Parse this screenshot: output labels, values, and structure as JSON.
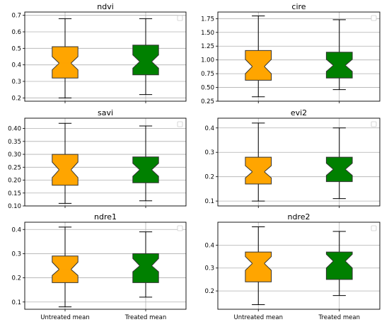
{
  "chart_data": [
    {
      "type": "box",
      "title": "ndvi",
      "categories": [
        "Untreated mean",
        "Treated mean"
      ],
      "yticks": [
        "0.2",
        "0.3",
        "0.4",
        "0.5",
        "0.6",
        "0.7"
      ],
      "ylim": [
        0.18,
        0.72
      ],
      "grid": true,
      "legend": "top-right",
      "colors": [
        "#FFA500",
        "#008000"
      ],
      "boxes": [
        {
          "whislo": 0.2,
          "q1": 0.32,
          "med": 0.41,
          "q3": 0.51,
          "whishi": 0.68,
          "notch_lo": 0.37,
          "notch_hi": 0.45
        },
        {
          "whislo": 0.22,
          "q1": 0.34,
          "med": 0.42,
          "q3": 0.52,
          "whishi": 0.68,
          "notch_lo": 0.38,
          "notch_hi": 0.46
        }
      ]
    },
    {
      "type": "box",
      "title": "cire",
      "categories": [
        "Untreated mean",
        "Treated mean"
      ],
      "yticks": [
        "0.25",
        "0.50",
        "0.75",
        "1.00",
        "1.25",
        "1.50",
        "1.75"
      ],
      "ylim": [
        0.25,
        1.87
      ],
      "grid": true,
      "legend": "top-right",
      "colors": [
        "#FFA500",
        "#008000"
      ],
      "boxes": [
        {
          "whislo": 0.33,
          "q1": 0.63,
          "med": 0.88,
          "q3": 1.17,
          "whishi": 1.8,
          "notch_lo": 0.75,
          "notch_hi": 1.01
        },
        {
          "whislo": 0.46,
          "q1": 0.67,
          "med": 0.9,
          "q3": 1.14,
          "whishi": 1.73,
          "notch_lo": 0.79,
          "notch_hi": 1.01
        }
      ]
    },
    {
      "type": "box",
      "title": "savi",
      "categories": [
        "Untreated mean",
        "Treated mean"
      ],
      "yticks": [
        "0.10",
        "0.15",
        "0.20",
        "0.25",
        "0.30",
        "0.35",
        "0.40"
      ],
      "ylim": [
        0.1,
        0.44
      ],
      "grid": true,
      "legend": "top-right",
      "colors": [
        "#FFA500",
        "#008000"
      ],
      "boxes": [
        {
          "whislo": 0.11,
          "q1": 0.18,
          "med": 0.24,
          "q3": 0.3,
          "whishi": 0.42,
          "notch_lo": 0.21,
          "notch_hi": 0.27
        },
        {
          "whislo": 0.12,
          "q1": 0.19,
          "med": 0.24,
          "q3": 0.29,
          "whishi": 0.41,
          "notch_lo": 0.215,
          "notch_hi": 0.265
        }
      ]
    },
    {
      "type": "box",
      "title": "evi2",
      "categories": [
        "Untreated mean",
        "Treated mean"
      ],
      "yticks": [
        "0.1",
        "0.2",
        "0.3",
        "0.4"
      ],
      "ylim": [
        0.08,
        0.44
      ],
      "grid": true,
      "legend": "top-right",
      "colors": [
        "#FFA500",
        "#008000"
      ],
      "boxes": [
        {
          "whislo": 0.1,
          "q1": 0.17,
          "med": 0.22,
          "q3": 0.28,
          "whishi": 0.42,
          "notch_lo": 0.195,
          "notch_hi": 0.245
        },
        {
          "whislo": 0.11,
          "q1": 0.18,
          "med": 0.23,
          "q3": 0.28,
          "whishi": 0.4,
          "notch_lo": 0.205,
          "notch_hi": 0.255
        }
      ]
    },
    {
      "type": "box",
      "title": "ndre1",
      "categories": [
        "Untreated mean",
        "Treated mean"
      ],
      "yticks": [
        "0.1",
        "0.2",
        "0.3",
        "0.4"
      ],
      "ylim": [
        0.07,
        0.43
      ],
      "grid": true,
      "legend": "top-right",
      "colors": [
        "#FFA500",
        "#008000"
      ],
      "boxes": [
        {
          "whislo": 0.08,
          "q1": 0.18,
          "med": 0.235,
          "q3": 0.29,
          "whishi": 0.41,
          "notch_lo": 0.21,
          "notch_hi": 0.265
        },
        {
          "whislo": 0.12,
          "q1": 0.18,
          "med": 0.25,
          "q3": 0.3,
          "whishi": 0.39,
          "notch_lo": 0.225,
          "notch_hi": 0.28
        }
      ]
    },
    {
      "type": "box",
      "title": "ndre2",
      "categories": [
        "Untreated mean",
        "Treated mean"
      ],
      "yticks": [
        "0.2",
        "0.3",
        "0.4"
      ],
      "ylim": [
        0.12,
        0.5
      ],
      "grid": true,
      "legend": "top-right",
      "colors": [
        "#FFA500",
        "#008000"
      ],
      "boxes": [
        {
          "whislo": 0.14,
          "q1": 0.24,
          "med": 0.32,
          "q3": 0.37,
          "whishi": 0.48,
          "notch_lo": 0.29,
          "notch_hi": 0.35
        },
        {
          "whislo": 0.18,
          "q1": 0.25,
          "med": 0.33,
          "q3": 0.37,
          "whishi": 0.46,
          "notch_lo": 0.3,
          "notch_hi": 0.36
        }
      ]
    }
  ]
}
